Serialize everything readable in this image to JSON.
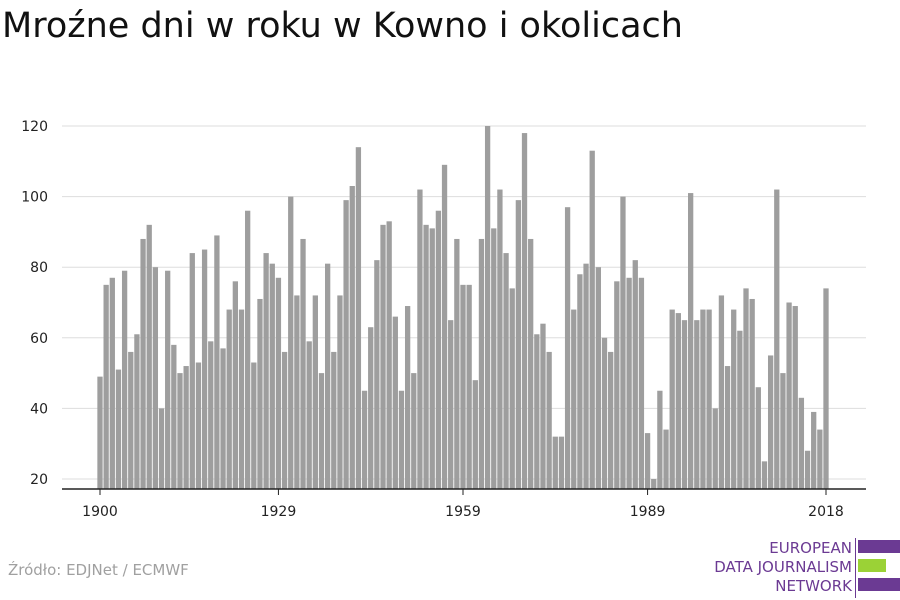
{
  "title": "Mroźne dni w roku w Kowno i okolicach",
  "source": "Źródło: EDJNet / ECMWF",
  "logo": {
    "lines": [
      "EUROPEAN",
      "DATA JOURNALISM",
      "NETWORK"
    ],
    "colors": {
      "purple": "#6b3a93",
      "green": "#9bd236"
    }
  },
  "colors": {
    "bar": "#9e9e9e",
    "grid": "#dddddd",
    "axis": "#222222",
    "text": "#222222"
  },
  "chart_data": {
    "type": "bar",
    "title": "Mroźne dni w roku w Kowno i okolicach",
    "xlabel": "",
    "ylabel": "",
    "x_start": 1900,
    "x_end": 2018,
    "xticks": [
      1900,
      1929,
      1959,
      1989,
      2018
    ],
    "yticks": [
      20,
      40,
      60,
      80,
      100,
      120
    ],
    "ylim": [
      17,
      120
    ],
    "grid": true,
    "legend": "none",
    "values": [
      49,
      75,
      77,
      51,
      79,
      56,
      61,
      88,
      92,
      80,
      40,
      79,
      58,
      50,
      52,
      84,
      53,
      85,
      59,
      89,
      57,
      68,
      76,
      68,
      96,
      53,
      71,
      84,
      81,
      77,
      56,
      100,
      72,
      88,
      59,
      72,
      50,
      81,
      56,
      72,
      99,
      103,
      114,
      45,
      63,
      82,
      92,
      93,
      66,
      45,
      69,
      50,
      102,
      92,
      91,
      96,
      109,
      65,
      88,
      75,
      75,
      48,
      88,
      120,
      91,
      102,
      84,
      74,
      99,
      118,
      88,
      61,
      64,
      56,
      32,
      32,
      97,
      68,
      78,
      81,
      113,
      80,
      60,
      56,
      76,
      100,
      77,
      82,
      77,
      33,
      20,
      45,
      34,
      68,
      67,
      65,
      101,
      65,
      68,
      68,
      40,
      72,
      52,
      68,
      62,
      74,
      71,
      46,
      25,
      55,
      102,
      50,
      70,
      69,
      43,
      28,
      39,
      34,
      74
    ]
  }
}
